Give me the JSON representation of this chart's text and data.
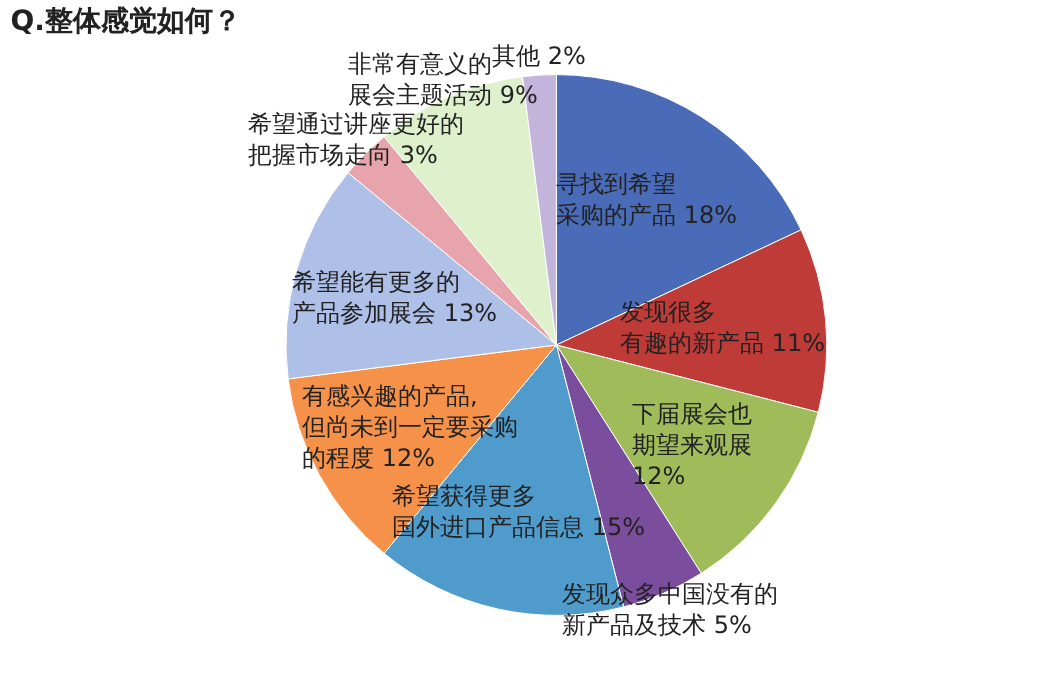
{
  "chart_data": {
    "type": "pie",
    "title": "Q.整体感觉如何？",
    "categories": [
      "寻找到希望采购的产品",
      "发现很多有趣的新产品",
      "下届展会也期望来观展",
      "发现众多中国没有的新产品及技术",
      "希望获得更多国外进口产品信息",
      "有感兴趣的产品,但尚未到一定要采购的程度",
      "希望能有更多的产品参加展会",
      "希望通过讲座更好的把握市场走向",
      "非常有意义的展会主题活动",
      "其他"
    ],
    "values": [
      18,
      11,
      12,
      5,
      15,
      12,
      13,
      3,
      9,
      2
    ],
    "value_labels": [
      "18%",
      "11%",
      "12%",
      "5%",
      "15%",
      "12%",
      "13%",
      "3%",
      "9%",
      "2%"
    ],
    "colors": [
      "#4a6cb8",
      "#bf3b38",
      "#9fbb5a",
      "#7a4e9c",
      "#4f9bcb",
      "#f6914a",
      "#aebfe8",
      "#e8a4ac",
      "#dff0cc",
      "#c3b4dc"
    ]
  }
}
